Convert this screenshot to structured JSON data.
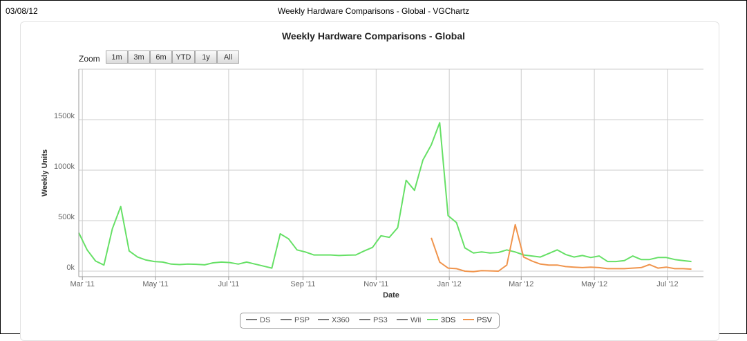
{
  "page": {
    "date": "03/08/12",
    "title": "Weekly Hardware Comparisons - Global - VGChartz"
  },
  "zoom": {
    "label": "Zoom",
    "buttons": [
      "1m",
      "3m",
      "6m",
      "YTD",
      "1y",
      "All"
    ]
  },
  "colors": {
    "3DS": "#66e066",
    "PSV": "#f0944c",
    "hidden_series": "#777777",
    "grid": "#cccccc"
  },
  "chart_data": {
    "type": "line",
    "title": "Weekly Hardware Comparisons - Global",
    "xlabel": "Date",
    "ylabel": "Weekly Units",
    "xlim": [
      "2011-02-26",
      "2012-07-31"
    ],
    "ylim": [
      0,
      2000000
    ],
    "y_ticks": [
      {
        "value": 0,
        "label": "0k"
      },
      {
        "value": 500000,
        "label": "500k"
      },
      {
        "value": 1000000,
        "label": "1000k"
      },
      {
        "value": 1500000,
        "label": "1500k"
      }
    ],
    "x_ticks": [
      {
        "date": "2011-03-01",
        "label": "Mar '11"
      },
      {
        "date": "2011-05-01",
        "label": "May '11"
      },
      {
        "date": "2011-07-01",
        "label": "Jul '11"
      },
      {
        "date": "2011-09-01",
        "label": "Sep '11"
      },
      {
        "date": "2011-11-01",
        "label": "Nov '11"
      },
      {
        "date": "2012-01-01",
        "label": "Jan '12"
      },
      {
        "date": "2012-03-01",
        "label": "Mar '12"
      },
      {
        "date": "2012-05-01",
        "label": "May '12"
      },
      {
        "date": "2012-07-01",
        "label": "Jul '12"
      }
    ],
    "grid": true,
    "legend_position": "bottom-center",
    "legend": [
      "DS",
      "PSP",
      "X360",
      "PS3",
      "Wii",
      "3DS",
      "PSV"
    ],
    "series": [
      {
        "name": "DS",
        "visible": false,
        "points": []
      },
      {
        "name": "PSP",
        "visible": false,
        "points": []
      },
      {
        "name": "X360",
        "visible": false,
        "points": []
      },
      {
        "name": "PS3",
        "visible": false,
        "points": []
      },
      {
        "name": "Wii",
        "visible": false,
        "points": []
      },
      {
        "name": "3DS",
        "visible": true,
        "points": [
          [
            "2011-02-26",
            380000
          ],
          [
            "2011-03-05",
            210000
          ],
          [
            "2011-03-12",
            100000
          ],
          [
            "2011-03-19",
            60000
          ],
          [
            "2011-03-26",
            420000
          ],
          [
            "2011-04-02",
            640000
          ],
          [
            "2011-04-09",
            200000
          ],
          [
            "2011-04-16",
            140000
          ],
          [
            "2011-04-23",
            110000
          ],
          [
            "2011-04-30",
            95000
          ],
          [
            "2011-05-07",
            90000
          ],
          [
            "2011-05-14",
            70000
          ],
          [
            "2011-05-21",
            65000
          ],
          [
            "2011-05-28",
            70000
          ],
          [
            "2011-06-04",
            68000
          ],
          [
            "2011-06-11",
            62000
          ],
          [
            "2011-06-18",
            82000
          ],
          [
            "2011-06-25",
            90000
          ],
          [
            "2011-07-02",
            85000
          ],
          [
            "2011-07-09",
            70000
          ],
          [
            "2011-07-16",
            90000
          ],
          [
            "2011-07-23",
            70000
          ],
          [
            "2011-07-30",
            50000
          ],
          [
            "2011-08-06",
            30000
          ],
          [
            "2011-08-13",
            370000
          ],
          [
            "2011-08-20",
            320000
          ],
          [
            "2011-08-27",
            210000
          ],
          [
            "2011-09-03",
            190000
          ],
          [
            "2011-09-10",
            160000
          ],
          [
            "2011-09-17",
            160000
          ],
          [
            "2011-09-24",
            160000
          ],
          [
            "2011-10-01",
            155000
          ],
          [
            "2011-10-08",
            158000
          ],
          [
            "2011-10-15",
            160000
          ],
          [
            "2011-10-22",
            200000
          ],
          [
            "2011-10-29",
            235000
          ],
          [
            "2011-11-05",
            350000
          ],
          [
            "2011-11-12",
            335000
          ],
          [
            "2011-11-19",
            430000
          ],
          [
            "2011-11-26",
            900000
          ],
          [
            "2011-12-03",
            800000
          ],
          [
            "2011-12-10",
            1100000
          ],
          [
            "2011-12-17",
            1250000
          ],
          [
            "2011-12-24",
            1470000
          ],
          [
            "2011-12-31",
            550000
          ],
          [
            "2012-01-07",
            480000
          ],
          [
            "2012-01-14",
            230000
          ],
          [
            "2012-01-21",
            180000
          ],
          [
            "2012-01-28",
            190000
          ],
          [
            "2012-02-04",
            180000
          ],
          [
            "2012-02-11",
            185000
          ],
          [
            "2012-02-18",
            210000
          ],
          [
            "2012-02-25",
            190000
          ],
          [
            "2012-03-03",
            160000
          ],
          [
            "2012-03-10",
            150000
          ],
          [
            "2012-03-17",
            140000
          ],
          [
            "2012-03-24",
            175000
          ],
          [
            "2012-03-31",
            210000
          ],
          [
            "2012-04-07",
            165000
          ],
          [
            "2012-04-14",
            140000
          ],
          [
            "2012-04-21",
            155000
          ],
          [
            "2012-04-28",
            135000
          ],
          [
            "2012-05-05",
            150000
          ],
          [
            "2012-05-12",
            95000
          ],
          [
            "2012-05-19",
            95000
          ],
          [
            "2012-05-26",
            105000
          ],
          [
            "2012-06-02",
            150000
          ],
          [
            "2012-06-09",
            115000
          ],
          [
            "2012-06-16",
            115000
          ],
          [
            "2012-06-23",
            135000
          ],
          [
            "2012-06-30",
            135000
          ],
          [
            "2012-07-07",
            115000
          ],
          [
            "2012-07-14",
            105000
          ],
          [
            "2012-07-21",
            95000
          ]
        ]
      },
      {
        "name": "PSV",
        "visible": true,
        "points": [
          [
            "2011-12-17",
            330000
          ],
          [
            "2011-12-24",
            90000
          ],
          [
            "2011-12-31",
            30000
          ],
          [
            "2012-01-07",
            25000
          ],
          [
            "2012-01-14",
            0
          ],
          [
            "2012-01-21",
            -5000
          ],
          [
            "2012-01-28",
            5000
          ],
          [
            "2012-02-04",
            3000
          ],
          [
            "2012-02-11",
            0
          ],
          [
            "2012-02-18",
            60000
          ],
          [
            "2012-02-25",
            460000
          ],
          [
            "2012-03-03",
            140000
          ],
          [
            "2012-03-10",
            100000
          ],
          [
            "2012-03-17",
            70000
          ],
          [
            "2012-03-24",
            60000
          ],
          [
            "2012-03-31",
            60000
          ],
          [
            "2012-04-07",
            45000
          ],
          [
            "2012-04-14",
            40000
          ],
          [
            "2012-04-21",
            35000
          ],
          [
            "2012-04-28",
            40000
          ],
          [
            "2012-05-05",
            35000
          ],
          [
            "2012-05-12",
            25000
          ],
          [
            "2012-05-19",
            25000
          ],
          [
            "2012-05-26",
            25000
          ],
          [
            "2012-06-02",
            30000
          ],
          [
            "2012-06-09",
            35000
          ],
          [
            "2012-06-16",
            65000
          ],
          [
            "2012-06-23",
            30000
          ],
          [
            "2012-06-30",
            40000
          ],
          [
            "2012-07-07",
            25000
          ],
          [
            "2012-07-14",
            25000
          ],
          [
            "2012-07-21",
            20000
          ]
        ]
      }
    ]
  }
}
